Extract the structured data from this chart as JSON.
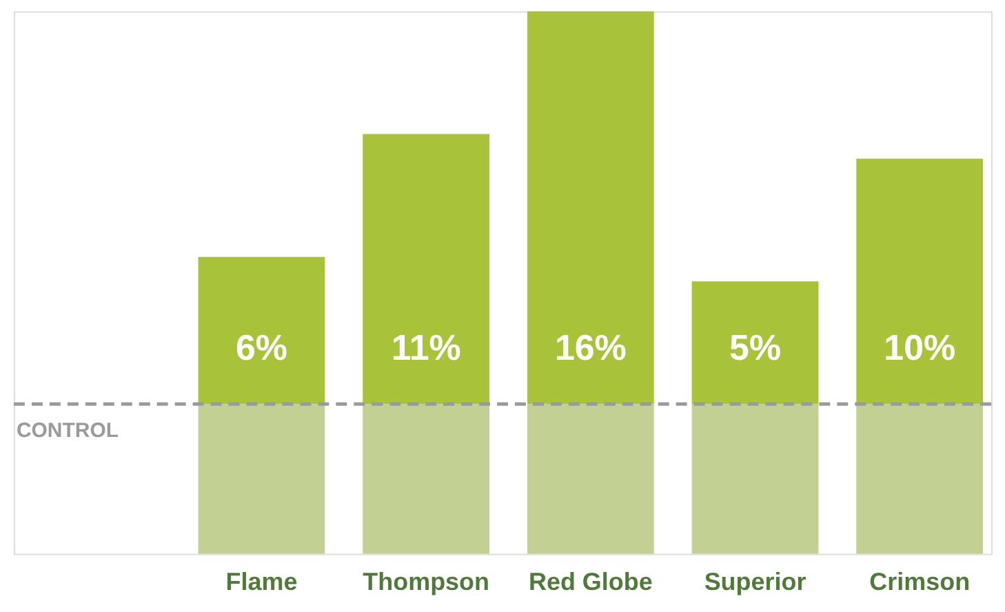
{
  "chart_data": {
    "type": "bar",
    "stacked": true,
    "tick_labels": "x",
    "categories": [
      "Flame",
      "Thompson",
      "Red Globe",
      "Superior",
      "Crimson"
    ],
    "series": [
      {
        "color": "#c3d093",
        "values": [
          6.1,
          6.1,
          6.1,
          6.1,
          6.1
        ]
      },
      {
        "color": "#a8c23a",
        "values": [
          6,
          11,
          16,
          5,
          10
        ],
        "value_labels": [
          "6%",
          "11%",
          "16%",
          "5%",
          "10%"
        ]
      }
    ],
    "ref_lines": [
      {
        "axis": "y",
        "value": 6.1,
        "label": "CONTROL",
        "color": "#9a9a9a",
        "line_style": "dashed"
      }
    ],
    "grid": false,
    "legend": false
  }
}
